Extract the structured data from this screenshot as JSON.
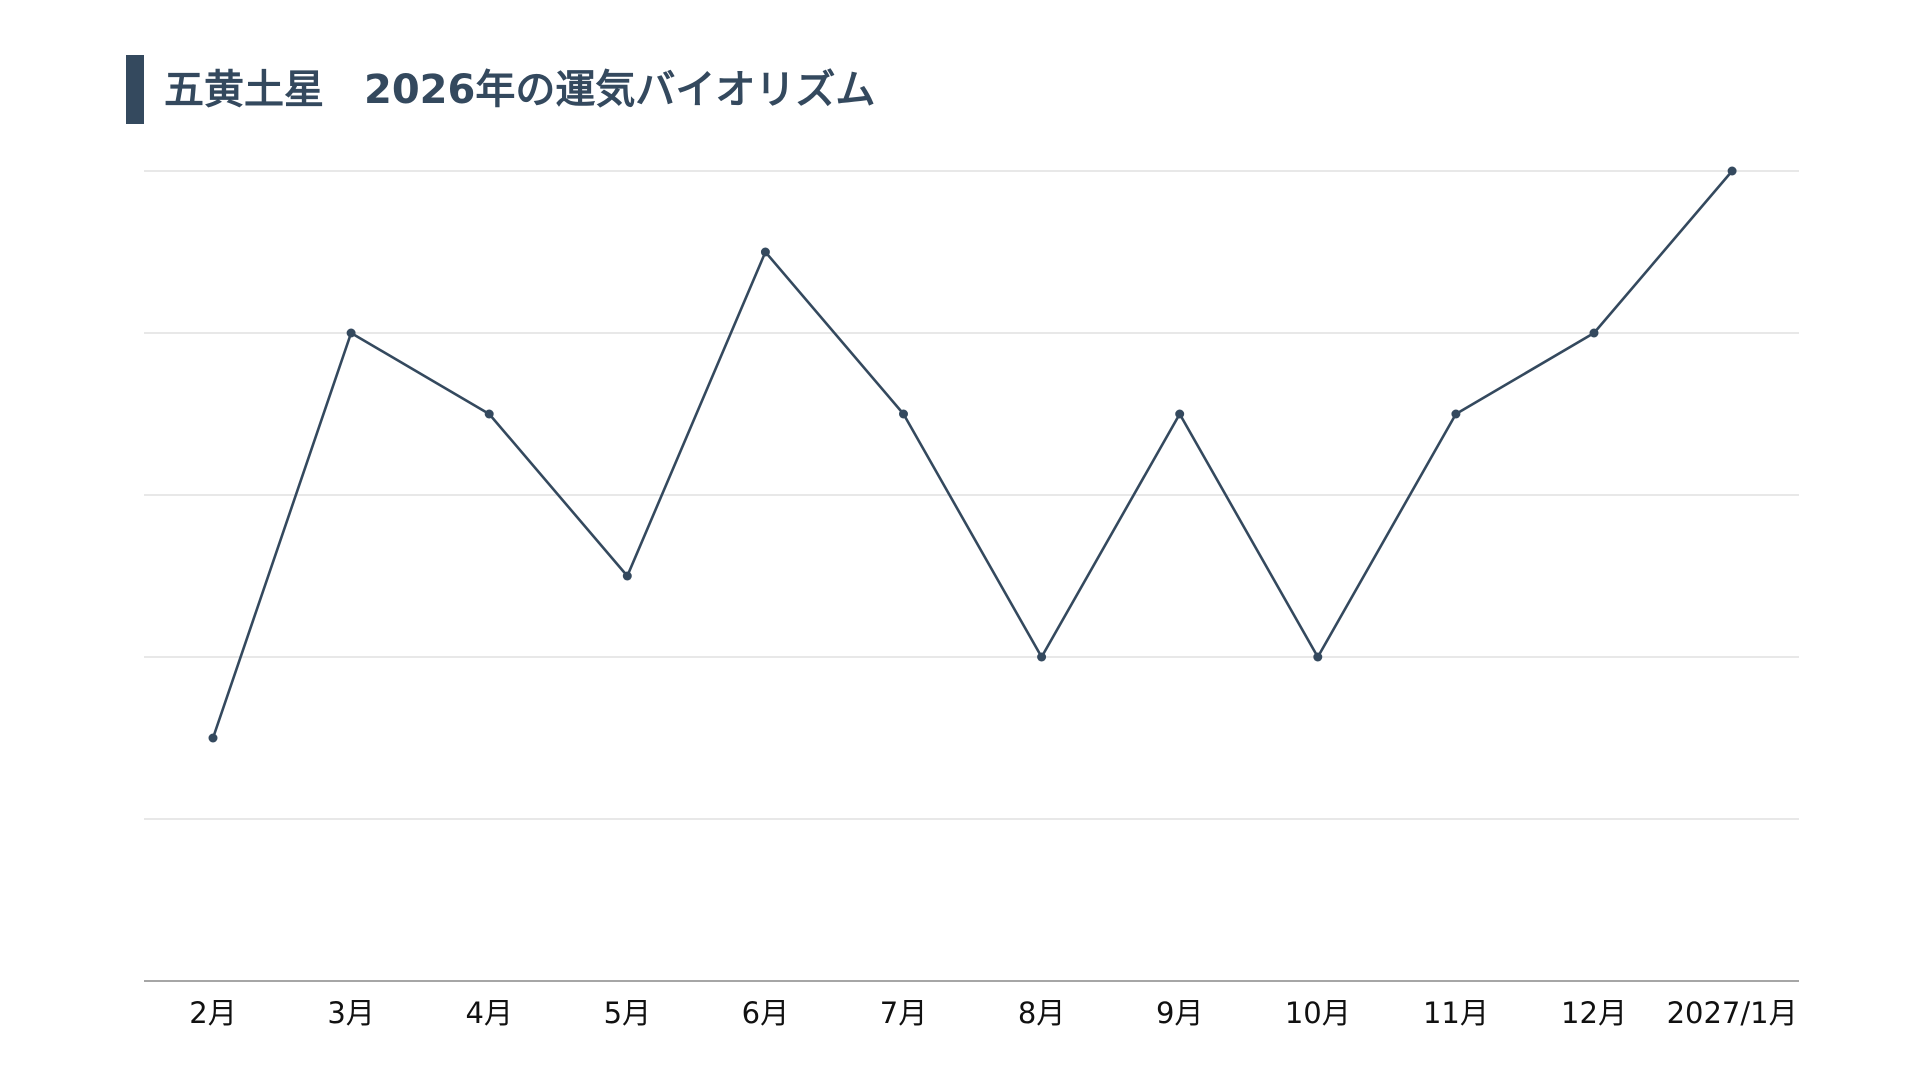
{
  "colors": {
    "accent": "#34495e",
    "grid": "#d9d9d9",
    "axis": "#888888",
    "text": "#111111"
  },
  "chart_data": {
    "type": "line",
    "title": "五黄土星　2026年の運気バイオリズム",
    "xlabel": "",
    "ylabel": "",
    "categories": [
      "2月",
      "3月",
      "4月",
      "5月",
      "6月",
      "7月",
      "8月",
      "9月",
      "10月",
      "11月",
      "12月",
      "2027/1月"
    ],
    "series": [
      {
        "values": [
          1.5,
          4,
          3.5,
          2.5,
          4.5,
          3.5,
          2,
          3.5,
          2,
          3.5,
          4,
          5
        ]
      }
    ],
    "ylim": [
      0,
      5
    ],
    "yticks": [
      0,
      1,
      2,
      3,
      4,
      5
    ],
    "ytick_labels_shown": false,
    "grid": true,
    "legend": "none",
    "markers": true
  }
}
